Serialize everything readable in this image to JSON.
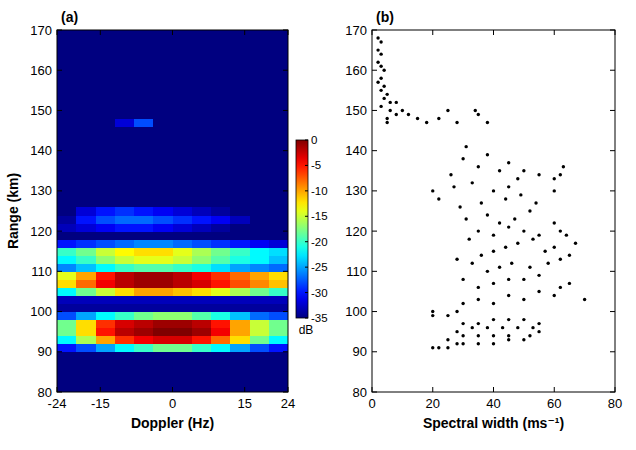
{
  "chart_data": [
    {
      "type": "heatmap",
      "title": "(a)",
      "x_label": "Doppler (Hz)",
      "y_label": "Range (km)",
      "xlim": [
        -24,
        24
      ],
      "xticks": [
        -24,
        -15,
        0,
        15,
        24
      ],
      "ylim": [
        80,
        170
      ],
      "yticks": [
        80,
        90,
        100,
        110,
        120,
        130,
        140,
        150,
        160,
        170
      ],
      "x_edges": [
        -24,
        -20,
        -16,
        -12,
        -8,
        -4,
        0,
        4,
        8,
        12,
        16,
        20,
        24
      ],
      "y_edges": [
        80,
        82,
        84,
        86,
        88,
        90,
        92,
        94,
        96,
        98,
        100,
        102,
        104,
        106,
        108,
        110,
        112,
        114,
        116,
        118,
        120,
        122,
        124,
        126,
        128,
        130,
        132,
        134,
        136,
        138,
        140,
        142,
        144,
        146,
        148,
        150,
        152,
        154,
        156,
        158,
        160,
        162,
        164,
        166,
        168,
        170
      ],
      "cells": [
        [
          -35,
          -35,
          -35,
          -35,
          -35,
          -35,
          -35,
          -35,
          -35,
          -35,
          -35,
          -35
        ],
        [
          -35,
          -35,
          -35,
          -35,
          -35,
          -35,
          -35,
          -35,
          -35,
          -35,
          -35,
          -35
        ],
        [
          -35,
          -35,
          -35,
          -35,
          -35,
          -35,
          -35,
          -35,
          -35,
          -35,
          -35,
          -35
        ],
        [
          -35,
          -35,
          -35,
          -35,
          -35,
          -35,
          -35,
          -35,
          -35,
          -35,
          -35,
          -35
        ],
        [
          -35,
          -35,
          -35,
          -35,
          -35,
          -35,
          -35,
          -35,
          -35,
          -35,
          -35,
          -35
        ],
        [
          -30,
          -28,
          -25,
          -22,
          -20,
          -18,
          -18,
          -20,
          -22,
          -25,
          -28,
          -30
        ],
        [
          -22,
          -16,
          -10,
          -6,
          -4,
          -3,
          -3,
          -5,
          -8,
          -12,
          -18,
          -22
        ],
        [
          -18,
          -12,
          -5,
          -2,
          -1,
          0,
          0,
          -1,
          -4,
          -10,
          -15,
          -18
        ],
        [
          -18,
          -12,
          -6,
          -3,
          -2,
          -1,
          -1,
          -2,
          -5,
          -10,
          -15,
          -18
        ],
        [
          -28,
          -25,
          -22,
          -20,
          -18,
          -17,
          -17,
          -19,
          -21,
          -24,
          -27,
          -28
        ],
        [
          -34,
          -34,
          -34,
          -34,
          -34,
          -34,
          -34,
          -34,
          -34,
          -34,
          -34,
          -34
        ],
        [
          -33,
          -33,
          -33,
          -33,
          -33,
          -33,
          -33,
          -33,
          -33,
          -33,
          -33,
          -33
        ],
        [
          -22,
          -18,
          -15,
          -12,
          -10,
          -10,
          -11,
          -12,
          -14,
          -16,
          -18,
          -20
        ],
        [
          -12,
          -8,
          -4,
          -2,
          -1,
          -1,
          -2,
          -3,
          -5,
          -7,
          -9,
          -11
        ],
        [
          -14,
          -10,
          -5,
          -2,
          -1,
          -1,
          -2,
          -4,
          -6,
          -8,
          -10,
          -12
        ],
        [
          -26,
          -24,
          -22,
          -20,
          -19,
          -19,
          -20,
          -21,
          -23,
          -25,
          -26,
          -27
        ],
        [
          -22,
          -20,
          -17,
          -15,
          -14,
          -14,
          -15,
          -17,
          -19,
          -21,
          -22,
          -24
        ],
        [
          -20,
          -18,
          -15,
          -13,
          -12,
          -12,
          -14,
          -16,
          -18,
          -20,
          -22,
          -23
        ],
        [
          -30,
          -29,
          -28,
          -27,
          -26,
          -26,
          -27,
          -28,
          -29,
          -30,
          -31,
          -32
        ],
        [
          -35,
          -35,
          -35,
          -35,
          -35,
          -35,
          -35,
          -35,
          -35,
          -35,
          -35,
          -35
        ],
        [
          -33,
          -32,
          -31,
          -30,
          -30,
          -31,
          -32,
          -33,
          -34,
          -35,
          -35,
          -35
        ],
        [
          -34,
          -30,
          -28,
          -27,
          -27,
          -28,
          -29,
          -30,
          -31,
          -33,
          -35,
          -35
        ],
        [
          -35,
          -32,
          -30,
          -29,
          -30,
          -31,
          -32,
          -33,
          -34,
          -35,
          -35,
          -35
        ],
        [
          -35,
          -35,
          -35,
          -35,
          -35,
          -35,
          -35,
          -35,
          -35,
          -35,
          -35,
          -35
        ],
        [
          -35,
          -35,
          -35,
          -35,
          -35,
          -35,
          -35,
          -35,
          -35,
          -35,
          -35,
          -35
        ],
        [
          -35,
          -35,
          -35,
          -35,
          -35,
          -35,
          -35,
          -35,
          -35,
          -35,
          -35,
          -35
        ],
        [
          -35,
          -35,
          -35,
          -35,
          -35,
          -35,
          -35,
          -35,
          -35,
          -35,
          -35,
          -35
        ],
        [
          -35,
          -35,
          -35,
          -35,
          -35,
          -35,
          -35,
          -35,
          -35,
          -35,
          -35,
          -35
        ],
        [
          -35,
          -35,
          -35,
          -35,
          -35,
          -35,
          -35,
          -35,
          -35,
          -35,
          -35,
          -35
        ],
        [
          -35,
          -35,
          -35,
          -35,
          -35,
          -35,
          -35,
          -35,
          -35,
          -35,
          -35,
          -35
        ],
        [
          -35,
          -35,
          -35,
          -35,
          -35,
          -35,
          -35,
          -35,
          -35,
          -35,
          -35,
          -35
        ],
        [
          -35,
          -35,
          -35,
          -35,
          -35,
          -35,
          -35,
          -35,
          -35,
          -35,
          -35,
          -35
        ],
        [
          -35,
          -35,
          -35,
          -35,
          -35,
          -35,
          -35,
          -35,
          -35,
          -35,
          -35,
          -35
        ],
        [
          -35,
          -35,
          -35,
          -32,
          -28,
          -35,
          -35,
          -35,
          -35,
          -35,
          -35,
          -35
        ],
        [
          -35,
          -35,
          -35,
          -35,
          -35,
          -35,
          -35,
          -35,
          -35,
          -35,
          -35,
          -35
        ],
        [
          -35,
          -35,
          -35,
          -35,
          -35,
          -35,
          -35,
          -35,
          -35,
          -35,
          -35,
          -35
        ],
        [
          -35,
          -35,
          -35,
          -35,
          -35,
          -35,
          -35,
          -35,
          -35,
          -35,
          -35,
          -35
        ],
        [
          -35,
          -35,
          -35,
          -35,
          -35,
          -35,
          -35,
          -35,
          -35,
          -35,
          -35,
          -35
        ],
        [
          -35,
          -35,
          -35,
          -35,
          -35,
          -35,
          -35,
          -35,
          -35,
          -35,
          -35,
          -35
        ],
        [
          -35,
          -35,
          -35,
          -35,
          -35,
          -35,
          -35,
          -35,
          -35,
          -35,
          -35,
          -35
        ],
        [
          -35,
          -35,
          -35,
          -35,
          -35,
          -35,
          -35,
          -35,
          -35,
          -35,
          -35,
          -35
        ],
        [
          -35,
          -35,
          -35,
          -35,
          -35,
          -35,
          -35,
          -35,
          -35,
          -35,
          -35,
          -35
        ],
        [
          -35,
          -35,
          -35,
          -35,
          -35,
          -35,
          -35,
          -35,
          -35,
          -35,
          -35,
          -35
        ],
        [
          -35,
          -35,
          -35,
          -35,
          -35,
          -35,
          -35,
          -35,
          -35,
          -35,
          -35,
          -35
        ],
        [
          -35,
          -35,
          -35,
          -35,
          -35,
          -35,
          -35,
          -35,
          -35,
          -35,
          -35,
          -35
        ]
      ],
      "colorbar_range": [
        -35,
        0
      ],
      "colorbar_ticks": [
        0,
        -5,
        -10,
        -15,
        -20,
        -25,
        -30,
        -35
      ],
      "colorbar_label": "dB"
    },
    {
      "type": "scatter",
      "title": "(b)",
      "x_label": "Spectral width (ms⁻¹)",
      "xlim": [
        0,
        80
      ],
      "xticks": [
        0,
        20,
        40,
        60,
        80
      ],
      "ylim": [
        80,
        170
      ],
      "yticks": [
        80,
        90,
        100,
        110,
        120,
        130,
        140,
        150,
        160,
        170
      ],
      "color": "#000000",
      "marker": "circle",
      "x": [
        2,
        3,
        2,
        3,
        2,
        3,
        4,
        3,
        2,
        4,
        3,
        5,
        4,
        6,
        8,
        3,
        6,
        10,
        12,
        8,
        15,
        5,
        18,
        22,
        28,
        25,
        35,
        38,
        34,
        5,
        20,
        22,
        25,
        28,
        30,
        35,
        40,
        45,
        50,
        25,
        30,
        35,
        40,
        45,
        52,
        55,
        28,
        33,
        38,
        43,
        48,
        53,
        30,
        35,
        40,
        45,
        50,
        20,
        25,
        20,
        28,
        55,
        30,
        35,
        40,
        45,
        50,
        55,
        60,
        62,
        65,
        70,
        35,
        40,
        45,
        50,
        55,
        38,
        42,
        46,
        52,
        58,
        62,
        65,
        60,
        67,
        30,
        33,
        36,
        40,
        44,
        48,
        53,
        57,
        28,
        32,
        35,
        40,
        45,
        50,
        55,
        31,
        38,
        42,
        47,
        52,
        29,
        36,
        44,
        49,
        54,
        60,
        62,
        64,
        20,
        22,
        27,
        33,
        40,
        45,
        48,
        42,
        35,
        30,
        38,
        45,
        50,
        55,
        60,
        62,
        63,
        60,
        31,
        26
      ],
      "y": [
        168,
        167,
        165,
        164,
        162,
        161,
        160,
        158,
        157,
        156,
        155,
        154,
        153,
        152,
        152,
        151,
        150,
        150,
        149,
        149,
        148,
        148,
        147,
        148,
        147,
        150,
        149,
        147,
        150,
        147,
        91,
        91,
        91,
        92,
        92,
        92,
        92,
        93,
        93,
        93,
        94,
        94,
        94,
        94,
        94,
        95,
        95,
        96,
        96,
        96,
        96,
        96,
        97,
        97,
        98,
        98,
        98,
        99,
        99,
        100,
        100,
        97,
        102,
        103,
        102,
        104,
        103,
        105,
        104,
        106,
        107,
        103,
        106,
        107,
        108,
        108,
        109,
        110,
        111,
        112,
        111,
        112,
        113,
        114,
        116,
        117,
        108,
        112,
        114,
        115,
        116,
        117,
        118,
        115,
        113,
        118,
        120,
        119,
        121,
        120,
        119,
        123,
        124,
        122,
        123,
        125,
        126,
        127,
        128,
        129,
        127,
        122,
        120,
        119,
        130,
        128,
        131,
        132,
        130,
        131,
        133,
        135,
        136,
        138,
        139,
        137,
        135,
        134,
        133,
        134,
        136,
        130,
        141,
        134
      ]
    }
  ]
}
